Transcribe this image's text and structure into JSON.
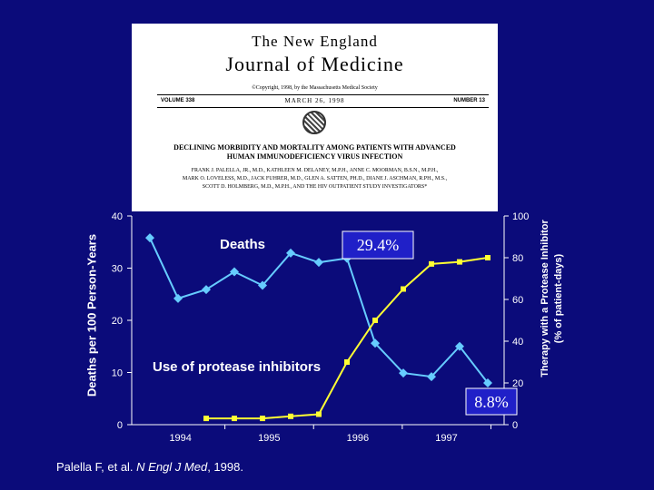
{
  "journal": {
    "title_top": "The New England",
    "title_main": "Journal of Medicine",
    "copyright": "©Copyright, 1998, by the Massachusetts Medical Society",
    "volume": "VOLUME 338",
    "date": "MARCH 26, 1998",
    "number": "NUMBER 13",
    "headline_1": "DECLINING MORBIDITY AND MORTALITY AMONG PATIENTS WITH ADVANCED",
    "headline_2": "HUMAN IMMUNODEFICIENCY VIRUS INFECTION",
    "authors_1": "FRANK J. PALELLA, JR., M.D., KATHLEEN M. DELANEY, M.P.H., ANNE C. MOORMAN, B.S.N., M.P.H.,",
    "authors_2": "MARK O. LOVELESS, M.D., JACK FUHRER, M.D., GLEN A. SATTEN, PH.D., DIANE J. ASCHMAN, R.PH., M.S.,",
    "authors_3": "SCOTT D. HOLMBERG, M.D., M.P.H., AND THE HIV OUTPATIENT STUDY INVESTIGATORS*"
  },
  "colors": {
    "background": "#0b0b7a",
    "deaths_line": "#66ccff",
    "protease_line": "#ffff33",
    "axis": "#ffffff",
    "callout_bg": "#2020c8"
  },
  "chart_data": {
    "type": "line",
    "x_categories": [
      "1994",
      "1995",
      "1996",
      "1997"
    ],
    "ylabel_left": "Deaths per 100 Person-Years",
    "ylabel_right_line1": "Therapy with a Protease Inhibitor",
    "ylabel_right_line2": "(% of patient-days)",
    "ylim_left": [
      0,
      40
    ],
    "yticks_left": [
      "0",
      "10",
      "20",
      "30",
      "40"
    ],
    "ylim_right": [
      0,
      100
    ],
    "yticks_right": [
      "0",
      "20",
      "40",
      "60",
      "80",
      "100"
    ],
    "x_range": [
      1,
      13
    ],
    "series": [
      {
        "name": "Deaths",
        "axis": "left",
        "marker": "diamond",
        "x": [
          1,
          2,
          3,
          4,
          5,
          6,
          7,
          8,
          9,
          10,
          11,
          12,
          13
        ],
        "values": [
          35.8,
          24.2,
          25.9,
          29.3,
          26.7,
          32.9,
          31.1,
          31.9,
          15.6,
          9.9,
          9.2,
          15.0,
          8.0
        ]
      },
      {
        "name": "Use of protease inhibitors",
        "axis": "right",
        "marker": "square",
        "x": [
          3,
          4,
          5,
          6,
          7,
          8,
          9,
          10,
          11,
          12,
          13
        ],
        "values": [
          3,
          3,
          3,
          4,
          5,
          30,
          50,
          65,
          77,
          78,
          80
        ]
      }
    ],
    "annotations": {
      "deaths_label": "Deaths",
      "protease_label": "Use of protease inhibitors",
      "callout_high": "29.4%",
      "callout_low": "8.8%"
    }
  },
  "citation": {
    "prefix": "Palella F, et al. ",
    "journal": "N Engl J Med",
    "suffix": ", 1998."
  }
}
